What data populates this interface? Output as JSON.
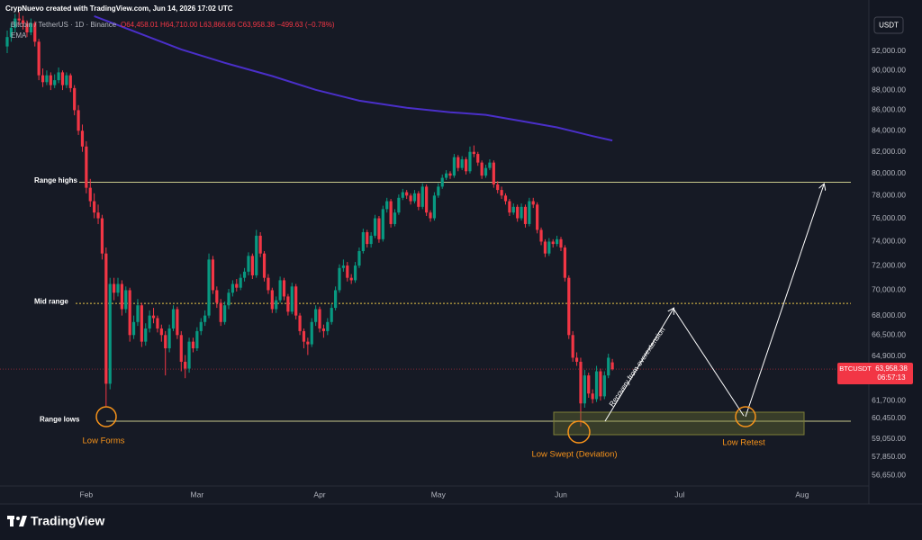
{
  "header": {
    "credit": "CrypNuevo created with TradingView.com, Jun 14, 2026 17:02 UTC",
    "currency_button": "USDT",
    "logo": "TradingView"
  },
  "chart_data": {
    "type": "candlestick",
    "title": "Bitcoin / TetherUS · 1D · Binance",
    "ohlc_legend": "O64,458.01 H64,710.00 L63,866.66 C63,958.38 −499.63 (−0.78%)",
    "colors": {
      "up": "#089981",
      "down": "#f23645"
    },
    "x": [
      0,
      1,
      2,
      3,
      4,
      5,
      6,
      7,
      8,
      9,
      10,
      11,
      12,
      13,
      14,
      15,
      16,
      17,
      18,
      19,
      20,
      21,
      22,
      23,
      24,
      25,
      26,
      27,
      28,
      29,
      30,
      31,
      32,
      33,
      34,
      35,
      36,
      37,
      38,
      39,
      40,
      41,
      42,
      43,
      44,
      45,
      46,
      47,
      48,
      49,
      50,
      51,
      52,
      53,
      54,
      55,
      56,
      57,
      58,
      59,
      60,
      61,
      62,
      63,
      64,
      65,
      66,
      67,
      68,
      69,
      70,
      71,
      72,
      73,
      74,
      75,
      76,
      77,
      78,
      79,
      80,
      81,
      82,
      83,
      84,
      85,
      86,
      87,
      88,
      89,
      90,
      91,
      92,
      93,
      94,
      95,
      96,
      97,
      98,
      99,
      100,
      101,
      102,
      103,
      104,
      105,
      106,
      107,
      108,
      109,
      110,
      111,
      112,
      113,
      114,
      115,
      116,
      117,
      118,
      119,
      120,
      121,
      122,
      123,
      124,
      125,
      126,
      127,
      128,
      129,
      130,
      131,
      132,
      133,
      134,
      135,
      136,
      137,
      138,
      139,
      140,
      141,
      142,
      143,
      144,
      145,
      146,
      147,
      148,
      149,
      150,
      151,
      152,
      153
    ],
    "ohlc": [
      [
        92500,
        94200,
        91800,
        93500
      ],
      [
        93500,
        95000,
        93000,
        94500
      ],
      [
        94500,
        96000,
        94000,
        95500
      ],
      [
        95500,
        96200,
        94800,
        95300
      ],
      [
        95300,
        95800,
        94300,
        95000
      ],
      [
        95000,
        95300,
        93500,
        94000
      ],
      [
        94000,
        95500,
        93700,
        95000
      ],
      [
        95000,
        95200,
        92500,
        93000
      ],
      [
        93000,
        93300,
        89000,
        89500
      ],
      [
        89500,
        90200,
        88300,
        88800
      ],
      [
        88800,
        90000,
        88500,
        89500
      ],
      [
        89500,
        89800,
        88000,
        88500
      ],
      [
        88500,
        89600,
        88200,
        89000
      ],
      [
        89000,
        90300,
        88700,
        89800
      ],
      [
        89800,
        90000,
        88000,
        88500
      ],
      [
        88500,
        89800,
        88200,
        89500
      ],
      [
        89500,
        89700,
        87800,
        88200
      ],
      [
        88200,
        88500,
        85500,
        86000
      ],
      [
        86000,
        86500,
        83600,
        84000
      ],
      [
        84000,
        84600,
        82000,
        82500
      ],
      [
        82500,
        83000,
        78200,
        78700
      ],
      [
        78700,
        79500,
        77000,
        77500
      ],
      [
        77500,
        78200,
        76000,
        76500
      ],
      [
        76500,
        77200,
        75500,
        76000
      ],
      [
        76000,
        76300,
        72500,
        73000
      ],
      [
        73000,
        73500,
        61300,
        62900
      ],
      [
        62900,
        71000,
        62500,
        70500
      ],
      [
        70500,
        71000,
        69200,
        69800
      ],
      [
        69800,
        71000,
        69500,
        70500
      ],
      [
        70500,
        70800,
        68000,
        68500
      ],
      [
        68500,
        70300,
        68200,
        70000
      ],
      [
        70000,
        70200,
        66000,
        66500
      ],
      [
        66500,
        68000,
        66200,
        67500
      ],
      [
        67500,
        69300,
        67200,
        68800
      ],
      [
        68800,
        69000,
        65600,
        66000
      ],
      [
        66000,
        67400,
        65700,
        67000
      ],
      [
        67000,
        68400,
        66700,
        68000
      ],
      [
        68000,
        68600,
        67400,
        67800
      ],
      [
        67800,
        68000,
        66700,
        67000
      ],
      [
        67000,
        67300,
        66000,
        66500
      ],
      [
        66500,
        66800,
        63500,
        65500
      ],
      [
        65500,
        67300,
        65200,
        67000
      ],
      [
        67000,
        68800,
        66800,
        68500
      ],
      [
        68500,
        68700,
        66200,
        66500
      ],
      [
        66500,
        66800,
        63800,
        64500
      ],
      [
        64500,
        65000,
        63300,
        64000
      ],
      [
        64000,
        66300,
        63700,
        66000
      ],
      [
        66000,
        66300,
        65200,
        65500
      ],
      [
        65500,
        67100,
        65300,
        66800
      ],
      [
        66800,
        67800,
        66500,
        67500
      ],
      [
        67500,
        68400,
        67200,
        68000
      ],
      [
        68000,
        73000,
        67800,
        72500
      ],
      [
        72500,
        72800,
        69700,
        70000
      ],
      [
        70000,
        70300,
        68600,
        69000
      ],
      [
        69000,
        69300,
        67200,
        67500
      ],
      [
        67500,
        69100,
        67300,
        68800
      ],
      [
        68800,
        70100,
        68500,
        69800
      ],
      [
        69800,
        70800,
        69500,
        70500
      ],
      [
        70500,
        70900,
        69900,
        70200
      ],
      [
        70200,
        71300,
        70000,
        71000
      ],
      [
        71000,
        71800,
        70700,
        71500
      ],
      [
        71500,
        73100,
        71200,
        72800
      ],
      [
        72800,
        73000,
        70900,
        71200
      ],
      [
        71200,
        75000,
        71000,
        74500
      ],
      [
        74500,
        74800,
        72700,
        73000
      ],
      [
        73000,
        73200,
        70700,
        71000
      ],
      [
        71000,
        71300,
        69700,
        70000
      ],
      [
        70000,
        70200,
        68200,
        68500
      ],
      [
        68500,
        69500,
        68200,
        69200
      ],
      [
        69200,
        71100,
        69000,
        70800
      ],
      [
        70800,
        71000,
        69200,
        69500
      ],
      [
        69500,
        69700,
        68000,
        68300
      ],
      [
        68300,
        70600,
        68100,
        70300
      ],
      [
        70300,
        70500,
        67700,
        68000
      ],
      [
        68000,
        68200,
        66500,
        66800
      ],
      [
        66800,
        67000,
        65500,
        66000
      ],
      [
        66000,
        66300,
        65000,
        65800
      ],
      [
        65800,
        67800,
        65600,
        67500
      ],
      [
        67500,
        68800,
        67200,
        68500
      ],
      [
        68500,
        68700,
        66700,
        67000
      ],
      [
        67000,
        67300,
        66300,
        66800
      ],
      [
        66800,
        67800,
        66500,
        67500
      ],
      [
        67500,
        68900,
        67300,
        68600
      ],
      [
        68600,
        70300,
        68400,
        70000
      ],
      [
        70000,
        72100,
        69800,
        71800
      ],
      [
        71800,
        72500,
        71500,
        72000
      ],
      [
        72000,
        72300,
        70700,
        71000
      ],
      [
        71000,
        71300,
        70500,
        70800
      ],
      [
        70800,
        72300,
        70600,
        72000
      ],
      [
        72000,
        73500,
        71800,
        73200
      ],
      [
        73200,
        75100,
        73000,
        74800
      ],
      [
        74800,
        75000,
        73500,
        73800
      ],
      [
        73800,
        74800,
        73500,
        74500
      ],
      [
        74500,
        76300,
        74300,
        76000
      ],
      [
        76000,
        76200,
        73900,
        74200
      ],
      [
        74200,
        77100,
        74000,
        76800
      ],
      [
        76800,
        77800,
        76500,
        77500
      ],
      [
        77500,
        77700,
        75200,
        75500
      ],
      [
        75500,
        76800,
        75300,
        76500
      ],
      [
        76500,
        78100,
        76300,
        77800
      ],
      [
        77800,
        78600,
        77600,
        78300
      ],
      [
        78300,
        78500,
        77700,
        78000
      ],
      [
        78000,
        78200,
        77200,
        77500
      ],
      [
        77500,
        78500,
        77300,
        78200
      ],
      [
        78200,
        78400,
        76700,
        77000
      ],
      [
        77000,
        79100,
        76800,
        78800
      ],
      [
        78800,
        79000,
        76200,
        76500
      ],
      [
        76500,
        76700,
        75700,
        76000
      ],
      [
        76000,
        78300,
        75800,
        78000
      ],
      [
        78000,
        79100,
        77800,
        78800
      ],
      [
        78800,
        79900,
        78600,
        79600
      ],
      [
        79600,
        80300,
        79400,
        80000
      ],
      [
        80000,
        80200,
        79500,
        79800
      ],
      [
        79800,
        81800,
        79600,
        81500
      ],
      [
        81500,
        81700,
        80200,
        80500
      ],
      [
        80500,
        81600,
        80300,
        81300
      ],
      [
        81300,
        81500,
        79900,
        80200
      ],
      [
        80200,
        82500,
        80000,
        82000
      ],
      [
        82000,
        82600,
        81500,
        81800
      ],
      [
        81800,
        82000,
        80700,
        81000
      ],
      [
        81000,
        81200,
        79500,
        79800
      ],
      [
        79800,
        80800,
        79600,
        80500
      ],
      [
        80500,
        81300,
        80300,
        81000
      ],
      [
        81000,
        81200,
        78700,
        79000
      ],
      [
        79000,
        79300,
        78200,
        78500
      ],
      [
        78500,
        78800,
        77700,
        78000
      ],
      [
        78000,
        78200,
        77200,
        77500
      ],
      [
        77500,
        77700,
        76200,
        76500
      ],
      [
        76500,
        77300,
        76300,
        77000
      ],
      [
        77000,
        77200,
        75700,
        76000
      ],
      [
        76000,
        77300,
        75800,
        77000
      ],
      [
        77000,
        77200,
        75200,
        75500
      ],
      [
        75500,
        77800,
        75300,
        77500
      ],
      [
        77500,
        77800,
        76900,
        77200
      ],
      [
        77200,
        77400,
        74700,
        75000
      ],
      [
        75000,
        75200,
        73700,
        74000
      ],
      [
        74000,
        74200,
        72700,
        73000
      ],
      [
        73000,
        74300,
        72800,
        74000
      ],
      [
        74000,
        74200,
        73500,
        73800
      ],
      [
        73800,
        74500,
        73600,
        74200
      ],
      [
        74200,
        74400,
        73200,
        73500
      ],
      [
        73500,
        73700,
        70700,
        71000
      ],
      [
        71000,
        71200,
        66200,
        66500
      ],
      [
        66500,
        66800,
        64500,
        64800
      ],
      [
        64800,
        65200,
        64200,
        64500
      ],
      [
        64500,
        64800,
        59900,
        61500
      ],
      [
        61500,
        63900,
        61200,
        63500
      ],
      [
        63500,
        63700,
        61900,
        62200
      ],
      [
        62200,
        62500,
        61500,
        61800
      ],
      [
        61800,
        64200,
        61600,
        63800
      ],
      [
        63800,
        64000,
        61700,
        62000
      ],
      [
        62000,
        63800,
        61800,
        63500
      ],
      [
        63500,
        65100,
        63300,
        64800
      ],
      [
        64458.01,
        64710,
        63866.66,
        63958.38
      ]
    ],
    "series": [
      {
        "name": "EMA",
        "color": "#4a2fc9",
        "x": [
          22,
          32,
          44,
          55,
          67,
          78,
          89,
          101,
          112,
          121,
          130,
          139,
          148,
          153
        ],
        "values": [
          95770,
          94130,
          92190,
          90790,
          89420,
          88030,
          86940,
          86240,
          85800,
          85540,
          84940,
          84330,
          83490,
          83070
        ]
      }
    ],
    "xlim": [
      -1.82,
      213.3
    ],
    "xticks": [
      {
        "value": 20,
        "label": "Feb"
      },
      {
        "value": 48,
        "label": "Mar"
      },
      {
        "value": 79,
        "label": "Apr"
      },
      {
        "value": 109,
        "label": "May"
      },
      {
        "value": 140,
        "label": "Jun"
      },
      {
        "value": 170,
        "label": "Jul"
      },
      {
        "value": 201,
        "label": "Aug"
      }
    ],
    "ylim": [
      55500,
      96350
    ],
    "log_scale": true,
    "grid": false,
    "yticks": [
      {
        "value": 92000,
        "label": "92,000.00"
      },
      {
        "value": 90000,
        "label": "90,000.00"
      },
      {
        "value": 88000,
        "label": "88,000.00"
      },
      {
        "value": 86000,
        "label": "86,000.00"
      },
      {
        "value": 84000,
        "label": "84,000.00"
      },
      {
        "value": 82000,
        "label": "82,000.00"
      },
      {
        "value": 80000,
        "label": "80,000.00"
      },
      {
        "value": 78000,
        "label": "78,000.00"
      },
      {
        "value": 76000,
        "label": "76,000.00"
      },
      {
        "value": 74000,
        "label": "74,000.00"
      },
      {
        "value": 72000,
        "label": "72,000.00"
      },
      {
        "value": 70000,
        "label": "70,000.00"
      },
      {
        "value": 68000,
        "label": "68,000.00"
      },
      {
        "value": 66500,
        "label": "66,500.00"
      },
      {
        "value": 64900,
        "label": "64,900.00"
      },
      {
        "value": 61700,
        "label": "61,700.00"
      },
      {
        "value": 60450,
        "label": "60,450.00"
      },
      {
        "value": 59050,
        "label": "59,050.00"
      },
      {
        "value": 57850,
        "label": "57,850.00"
      },
      {
        "value": 56650,
        "label": "56,650.00"
      }
    ],
    "levels": [
      {
        "label": "Range highs",
        "value": 79200,
        "color": "#c8c88c",
        "style": "solid"
      },
      {
        "label": "Mid range",
        "value": 68950,
        "color": "#e8c547",
        "style": "dotted"
      },
      {
        "label": "Range lows",
        "value": 60260,
        "color": "#c8c88c",
        "style": "solid"
      }
    ],
    "last_price": {
      "value": 63958.38,
      "label": "63,958.38"
    },
    "symbol_tag": "BTCUSDT",
    "countdown": "06:57:13",
    "annotations": [
      "Low Forms",
      "Low Swept (Deviation)",
      "Low Retest",
      "Recovery from overextension"
    ]
  }
}
